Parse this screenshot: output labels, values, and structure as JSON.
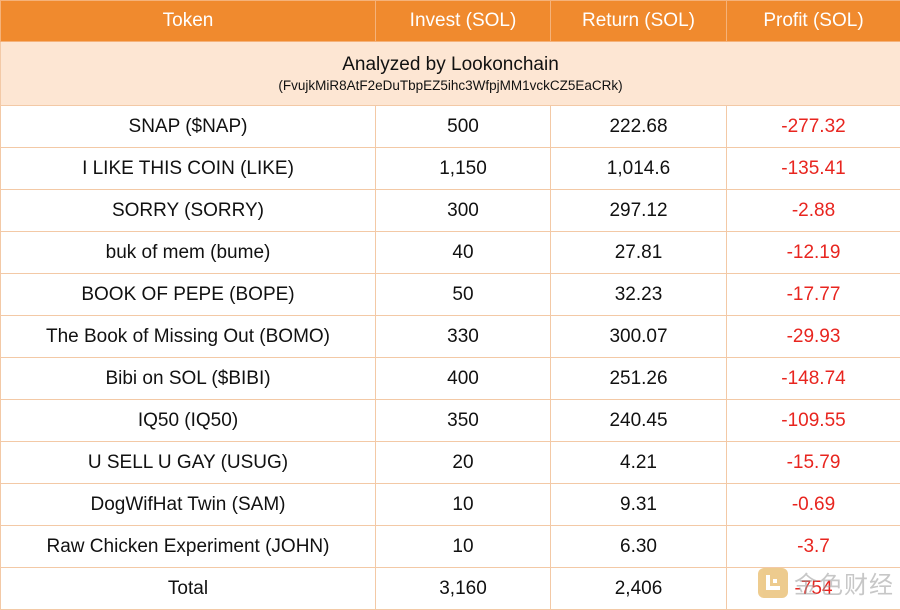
{
  "header": {
    "token": "Token",
    "invest": "Invest (SOL)",
    "return": "Return (SOL)",
    "profit": "Profit (SOL)"
  },
  "analyzed": {
    "title": "Analyzed by Lookonchain",
    "address": "(FvujkMiR8AtF2eDuTbpEZ5ihc3WfpjMM1vckCZ5EaCRk)"
  },
  "rows": [
    {
      "token": "SNAP ($NAP)",
      "invest": "500",
      "return": "222.68",
      "profit": "-277.32"
    },
    {
      "token": "I LIKE THIS COIN (LIKE)",
      "invest": "1,150",
      "return": "1,014.6",
      "profit": "-135.41"
    },
    {
      "token": "SORRY (SORRY)",
      "invest": "300",
      "return": "297.12",
      "profit": "-2.88"
    },
    {
      "token": "buk of mem (bume)",
      "invest": "40",
      "return": "27.81",
      "profit": "-12.19"
    },
    {
      "token": "BOOK OF PEPE (BOPE)",
      "invest": "50",
      "return": "32.23",
      "profit": "-17.77"
    },
    {
      "token": "The Book of Missing Out (BOMO)",
      "invest": "330",
      "return": "300.07",
      "profit": "-29.93"
    },
    {
      "token": "Bibi on SOL ($BIBI)",
      "invest": "400",
      "return": "251.26",
      "profit": "-148.74"
    },
    {
      "token": "IQ50 (IQ50)",
      "invest": "350",
      "return": "240.45",
      "profit": "-109.55"
    },
    {
      "token": "U SELL U GAY (USUG)",
      "invest": "20",
      "return": "4.21",
      "profit": "-15.79"
    },
    {
      "token": "DogWifHat Twin (SAM)",
      "invest": "10",
      "return": "9.31",
      "profit": "-0.69"
    },
    {
      "token": "Raw Chicken Experiment (JOHN)",
      "invest": "10",
      "return": "6.30",
      "profit": "-3.7"
    }
  ],
  "total": {
    "label": "Total",
    "invest": "3,160",
    "return": "2,406",
    "profit": "-754"
  },
  "watermark": {
    "text": "金色财经",
    "logo_icon": "golden-finance-logo-icon"
  },
  "colors": {
    "header_bg": "#f08a2e",
    "analyzed_bg": "#fde6d3",
    "profit_negative": "#e8251f",
    "border": "#f3c9a6"
  }
}
